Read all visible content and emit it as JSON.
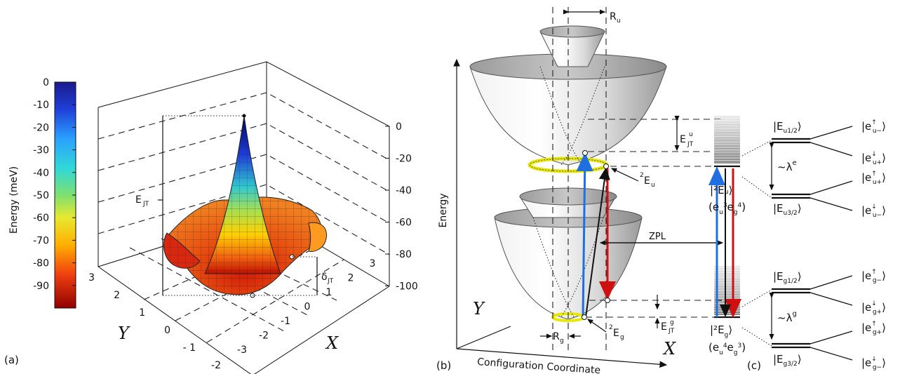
{
  "panel_a": {
    "label": "(a)",
    "colorbar": {
      "title": "Energy (meV)",
      "ticks": [
        "0",
        "-10",
        "-20",
        "-30",
        "-40",
        "-50",
        "-60",
        "-70",
        "-80",
        "-90"
      ]
    },
    "z_ticks": [
      "0",
      "-20",
      "-40",
      "-60",
      "-80",
      "-100"
    ],
    "y_ticks": [
      "3",
      "2",
      "1",
      "0",
      "- 1",
      "-2",
      "-3"
    ],
    "x_ticks": [
      "-3",
      "-2",
      "-1",
      "0",
      "1",
      "2",
      "3"
    ],
    "y_axis": "Y",
    "x_axis": "X",
    "ejt_label": "E",
    "ejt_sub": "JT",
    "delta_label": "δ",
    "delta_sub": "JT"
  },
  "panel_b": {
    "label": "(b)",
    "energy_axis": "Energy",
    "config_axis": "Configuration Coordinate",
    "y_axis": "Y",
    "x_axis": "X",
    "ru": "R",
    "ru_sub": "u",
    "rg": "R",
    "rg_sub": "g",
    "state_u": "E",
    "state_u_sup": "2",
    "state_u_sub": "u",
    "state_g": "E",
    "state_g_sup": "2",
    "state_g_sub": "g",
    "zpl": "ZPL",
    "ejt_u": "E",
    "ejt_u_sub": "JT",
    "ejt_u_sup": "u",
    "ejt_g": "E",
    "ejt_g_sub": "JT",
    "ejt_g_sup": "g"
  },
  "panel_c": {
    "label": "(c)",
    "ket_u": "|²Eᵤ⟩",
    "config_u": "(e",
    "ket_g": "|²E",
    "ket_g_sub": "g",
    "lambda_e": "~λ",
    "lambda_e_sup": "e",
    "lambda_g": "~λ",
    "lambda_g_sup": "g",
    "levels_u": [
      "|E",
      "|E"
    ],
    "states_u": [
      "|e",
      "|e",
      "|e",
      "|e"
    ],
    "states_g": [
      "|e",
      "|e",
      "|e",
      "|e"
    ]
  },
  "colors": {
    "blue_arrow": "#1f6fe0",
    "red_arrow": "#d01010",
    "ring": "#e8e800",
    "surface_low": "#b00000",
    "surface_mid": "#ffd800",
    "surface_high": "#000080"
  }
}
